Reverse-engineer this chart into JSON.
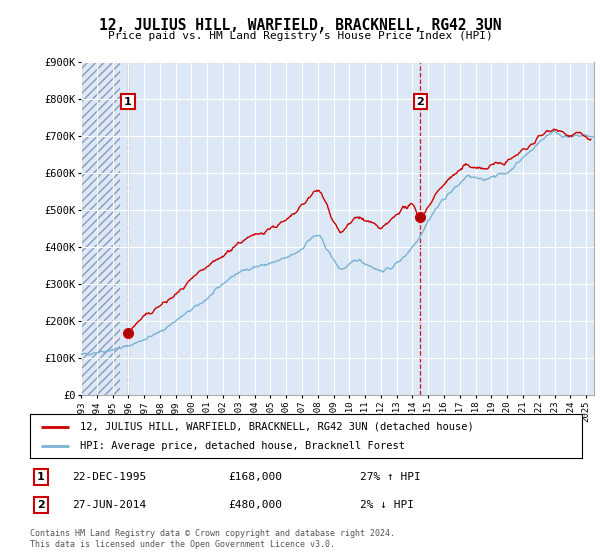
{
  "title": "12, JULIUS HILL, WARFIELD, BRACKNELL, RG42 3UN",
  "subtitle": "Price paid vs. HM Land Registry's House Price Index (HPI)",
  "ylabel_ticks": [
    "£0",
    "£100K",
    "£200K",
    "£300K",
    "£400K",
    "£500K",
    "£600K",
    "£700K",
    "£800K",
    "£900K"
  ],
  "ytick_values": [
    0,
    100000,
    200000,
    300000,
    400000,
    500000,
    600000,
    700000,
    800000,
    900000
  ],
  "ylim": [
    0,
    900000
  ],
  "sale1_date": 1995.97,
  "sale1_price": 168000,
  "sale1_label": "1",
  "sale1_hpi_pct": "27% ↑ HPI",
  "sale1_date_str": "22-DEC-1995",
  "sale2_date": 2014.49,
  "sale2_price": 480000,
  "sale2_label": "2",
  "sale2_hpi_pct": "2% ↓ HPI",
  "sale2_date_str": "27-JUN-2014",
  "legend_line1": "12, JULIUS HILL, WARFIELD, BRACKNELL, RG42 3UN (detached house)",
  "legend_line2": "HPI: Average price, detached house, Bracknell Forest",
  "footnote": "Contains HM Land Registry data © Crown copyright and database right 2024.\nThis data is licensed under the Open Government Licence v3.0.",
  "hpi_color": "#7ab3d4",
  "price_color": "#cc0000",
  "hatch_fill_color": "#dce8f5",
  "xlim_start": 1993.0,
  "xlim_end": 2025.5,
  "xticks": [
    1993,
    1994,
    1995,
    1996,
    1997,
    1998,
    1999,
    2000,
    2001,
    2002,
    2003,
    2004,
    2005,
    2006,
    2007,
    2008,
    2009,
    2010,
    2011,
    2012,
    2013,
    2014,
    2015,
    2016,
    2017,
    2018,
    2019,
    2020,
    2021,
    2022,
    2023,
    2024,
    2025
  ]
}
